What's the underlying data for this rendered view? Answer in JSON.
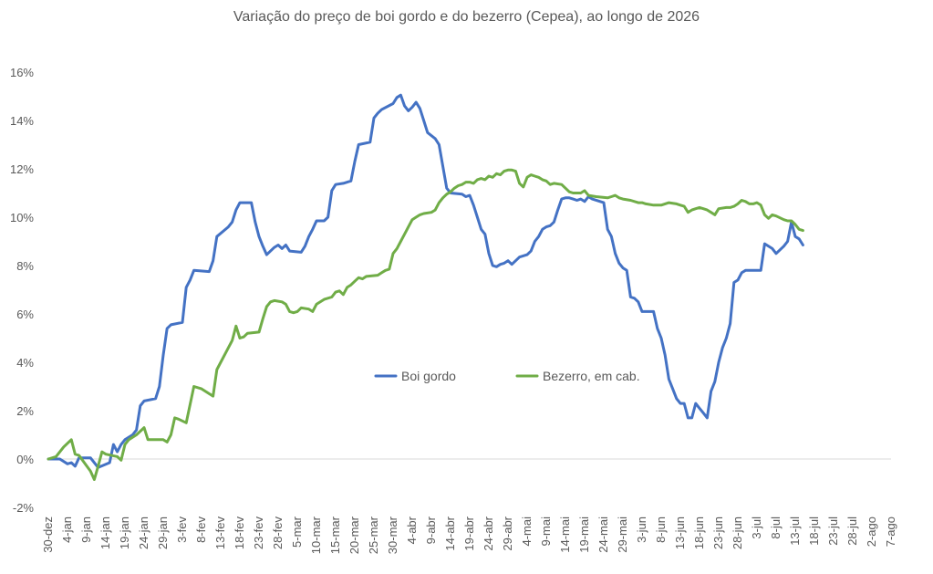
{
  "chart_data": {
    "type": "line",
    "title": "Variação do preço de boi gordo  e do bezerro (Cepea), ao longo de 2026",
    "xlabel": "",
    "ylabel": "",
    "ylim": [
      -2,
      16
    ],
    "yticks": [
      -2,
      0,
      2,
      4,
      6,
      8,
      10,
      12,
      14,
      16
    ],
    "ytick_labels": [
      "-2%",
      "0%",
      "2%",
      "4%",
      "6%",
      "8%",
      "10%",
      "12%",
      "14%",
      "16%"
    ],
    "x_tick_labels": [
      "30-dez",
      "4-jan",
      "9-jan",
      "14-jan",
      "19-jan",
      "24-jan",
      "29-jan",
      "3-fev",
      "8-fev",
      "13-fev",
      "18-fev",
      "23-fev",
      "28-fev",
      "5-mar",
      "10-mar",
      "15-mar",
      "20-mar",
      "25-mar",
      "30-mar",
      "4-abr",
      "9-abr",
      "14-abr",
      "19-abr",
      "24-abr",
      "29-abr",
      "4-mai",
      "9-mai",
      "14-mai",
      "19-mai",
      "24-mai",
      "29-mai",
      "3-jun",
      "8-jun",
      "13-jun",
      "18-jun",
      "23-jun",
      "28-jun",
      "3-jul",
      "8-jul",
      "13-jul",
      "18-jul",
      "23-jul",
      "28-jul",
      "2-ago",
      "7-ago"
    ],
    "x_unit": "dias desde 30-dez",
    "legend_position": "center",
    "grid": false,
    "series": [
      {
        "name": "Boi gordo",
        "color": "#4472C4",
        "points": [
          [
            0,
            0
          ],
          [
            3,
            0
          ],
          [
            5,
            -0.2
          ],
          [
            6,
            -0.15
          ],
          [
            7,
            -0.3
          ],
          [
            8,
            0.05
          ],
          [
            11,
            0.05
          ],
          [
            13,
            -0.35
          ],
          [
            16,
            -0.15
          ],
          [
            17,
            0.6
          ],
          [
            18,
            0.3
          ],
          [
            19,
            0.6
          ],
          [
            20,
            0.8
          ],
          [
            22,
            1.0
          ],
          [
            23,
            1.2
          ],
          [
            24,
            2.2
          ],
          [
            25,
            2.4
          ],
          [
            28,
            2.5
          ],
          [
            29,
            3.0
          ],
          [
            30,
            4.3
          ],
          [
            31,
            5.4
          ],
          [
            32,
            5.55
          ],
          [
            35,
            5.65
          ],
          [
            36,
            7.1
          ],
          [
            37,
            7.4
          ],
          [
            38,
            7.8
          ],
          [
            42,
            7.75
          ],
          [
            43,
            8.2
          ],
          [
            44,
            9.2
          ],
          [
            47,
            9.6
          ],
          [
            48,
            9.8
          ],
          [
            49,
            10.3
          ],
          [
            50,
            10.6
          ],
          [
            53,
            10.6
          ],
          [
            54,
            9.8
          ],
          [
            55,
            9.2
          ],
          [
            56,
            8.8
          ],
          [
            57,
            8.45
          ],
          [
            58,
            8.6
          ],
          [
            59,
            8.75
          ],
          [
            60,
            8.85
          ],
          [
            61,
            8.7
          ],
          [
            62,
            8.85
          ],
          [
            63,
            8.6
          ],
          [
            66,
            8.55
          ],
          [
            67,
            8.8
          ],
          [
            68,
            9.2
          ],
          [
            69,
            9.5
          ],
          [
            70,
            9.85
          ],
          [
            72,
            9.85
          ],
          [
            73,
            10.0
          ],
          [
            74,
            11.1
          ],
          [
            75,
            11.35
          ],
          [
            77,
            11.4
          ],
          [
            79,
            11.5
          ],
          [
            80,
            12.3
          ],
          [
            81,
            13.0
          ],
          [
            84,
            13.1
          ],
          [
            85,
            14.1
          ],
          [
            86,
            14.3
          ],
          [
            87,
            14.45
          ],
          [
            90,
            14.7
          ],
          [
            91,
            14.95
          ],
          [
            92,
            15.05
          ],
          [
            93,
            14.6
          ],
          [
            94,
            14.4
          ],
          [
            95,
            14.55
          ],
          [
            96,
            14.75
          ],
          [
            97,
            14.5
          ],
          [
            98,
            14.0
          ],
          [
            99,
            13.5
          ],
          [
            101,
            13.25
          ],
          [
            102,
            13.0
          ],
          [
            103,
            12.1
          ],
          [
            104,
            11.2
          ],
          [
            105,
            11.0
          ],
          [
            108,
            10.95
          ],
          [
            109,
            10.85
          ],
          [
            110,
            10.9
          ],
          [
            111,
            10.5
          ],
          [
            112,
            10.0
          ],
          [
            113,
            9.5
          ],
          [
            114,
            9.3
          ],
          [
            115,
            8.5
          ],
          [
            116,
            8.0
          ],
          [
            117,
            7.95
          ],
          [
            118,
            8.05
          ],
          [
            119,
            8.1
          ],
          [
            120,
            8.2
          ],
          [
            121,
            8.05
          ],
          [
            122,
            8.2
          ],
          [
            123,
            8.35
          ],
          [
            125,
            8.45
          ],
          [
            126,
            8.6
          ],
          [
            127,
            9.0
          ],
          [
            128,
            9.2
          ],
          [
            129,
            9.5
          ],
          [
            130,
            9.6
          ],
          [
            131,
            9.65
          ],
          [
            132,
            9.8
          ],
          [
            133,
            10.3
          ],
          [
            134,
            10.75
          ],
          [
            135,
            10.8
          ],
          [
            136,
            10.8
          ],
          [
            137,
            10.75
          ],
          [
            138,
            10.7
          ],
          [
            139,
            10.75
          ],
          [
            140,
            10.65
          ],
          [
            141,
            10.85
          ],
          [
            142,
            10.75
          ],
          [
            145,
            10.6
          ],
          [
            146,
            9.5
          ],
          [
            147,
            9.2
          ],
          [
            148,
            8.5
          ],
          [
            149,
            8.1
          ],
          [
            150,
            7.9
          ],
          [
            151,
            7.8
          ],
          [
            152,
            6.7
          ],
          [
            153,
            6.65
          ],
          [
            154,
            6.5
          ],
          [
            155,
            6.1
          ],
          [
            158,
            6.1
          ],
          [
            159,
            5.4
          ],
          [
            160,
            5.0
          ],
          [
            161,
            4.3
          ],
          [
            162,
            3.3
          ],
          [
            163,
            2.9
          ],
          [
            164,
            2.5
          ],
          [
            165,
            2.3
          ],
          [
            166,
            2.3
          ],
          [
            167,
            1.7
          ],
          [
            168,
            1.7
          ],
          [
            169,
            2.3
          ],
          [
            170,
            2.1
          ],
          [
            171,
            1.9
          ],
          [
            172,
            1.7
          ],
          [
            173,
            2.8
          ],
          [
            174,
            3.2
          ],
          [
            175,
            4.0
          ],
          [
            176,
            4.6
          ],
          [
            177,
            5.0
          ],
          [
            178,
            5.6
          ],
          [
            179,
            7.3
          ],
          [
            180,
            7.4
          ],
          [
            181,
            7.7
          ],
          [
            182,
            7.8
          ],
          [
            186,
            7.8
          ],
          [
            187,
            8.9
          ],
          [
            188,
            8.8
          ],
          [
            189,
            8.7
          ],
          [
            190,
            8.5
          ],
          [
            192,
            8.8
          ],
          [
            193,
            9.0
          ],
          [
            194,
            9.8
          ],
          [
            195,
            9.2
          ],
          [
            196,
            9.1
          ],
          [
            197,
            8.85
          ]
        ]
      },
      {
        "name": "Bezerro, em cab.",
        "color": "#70AD47",
        "points": [
          [
            0,
            0
          ],
          [
            2,
            0.1
          ],
          [
            4,
            0.5
          ],
          [
            6,
            0.8
          ],
          [
            7,
            0.2
          ],
          [
            8,
            0.15
          ],
          [
            11,
            -0.5
          ],
          [
            12,
            -0.85
          ],
          [
            13,
            -0.3
          ],
          [
            14,
            0.3
          ],
          [
            15,
            0.2
          ],
          [
            18,
            0.1
          ],
          [
            19,
            -0.05
          ],
          [
            20,
            0.6
          ],
          [
            21,
            0.8
          ],
          [
            23,
            1.0
          ],
          [
            25,
            1.3
          ],
          [
            26,
            0.8
          ],
          [
            30,
            0.8
          ],
          [
            31,
            0.7
          ],
          [
            32,
            1.0
          ],
          [
            33,
            1.7
          ],
          [
            34,
            1.65
          ],
          [
            36,
            1.5
          ],
          [
            38,
            3.0
          ],
          [
            40,
            2.9
          ],
          [
            43,
            2.6
          ],
          [
            44,
            3.7
          ],
          [
            45,
            4.0
          ],
          [
            47,
            4.6
          ],
          [
            48,
            4.9
          ],
          [
            49,
            5.5
          ],
          [
            50,
            5.0
          ],
          [
            51,
            5.05
          ],
          [
            52,
            5.2
          ],
          [
            55,
            5.25
          ],
          [
            56,
            5.8
          ],
          [
            57,
            6.3
          ],
          [
            58,
            6.5
          ],
          [
            59,
            6.55
          ],
          [
            61,
            6.5
          ],
          [
            62,
            6.4
          ],
          [
            63,
            6.1
          ],
          [
            64,
            6.05
          ],
          [
            65,
            6.1
          ],
          [
            66,
            6.25
          ],
          [
            68,
            6.2
          ],
          [
            69,
            6.1
          ],
          [
            70,
            6.4
          ],
          [
            72,
            6.6
          ],
          [
            74,
            6.7
          ],
          [
            75,
            6.9
          ],
          [
            76,
            6.95
          ],
          [
            77,
            6.8
          ],
          [
            78,
            7.1
          ],
          [
            79,
            7.2
          ],
          [
            80,
            7.35
          ],
          [
            81,
            7.5
          ],
          [
            82,
            7.45
          ],
          [
            83,
            7.55
          ],
          [
            86,
            7.6
          ],
          [
            87,
            7.7
          ],
          [
            88,
            7.8
          ],
          [
            89,
            7.85
          ],
          [
            90,
            8.5
          ],
          [
            91,
            8.7
          ],
          [
            92,
            9.0
          ],
          [
            93,
            9.3
          ],
          [
            94,
            9.6
          ],
          [
            95,
            9.9
          ],
          [
            96,
            10.0
          ],
          [
            97,
            10.1
          ],
          [
            98,
            10.15
          ],
          [
            100,
            10.2
          ],
          [
            101,
            10.3
          ],
          [
            102,
            10.6
          ],
          [
            103,
            10.8
          ],
          [
            104,
            10.95
          ],
          [
            105,
            11.05
          ],
          [
            106,
            11.2
          ],
          [
            107,
            11.3
          ],
          [
            108,
            11.35
          ],
          [
            109,
            11.45
          ],
          [
            110,
            11.45
          ],
          [
            111,
            11.4
          ],
          [
            112,
            11.55
          ],
          [
            113,
            11.6
          ],
          [
            114,
            11.55
          ],
          [
            115,
            11.7
          ],
          [
            116,
            11.65
          ],
          [
            117,
            11.8
          ],
          [
            118,
            11.75
          ],
          [
            119,
            11.9
          ],
          [
            120,
            11.95
          ],
          [
            121,
            11.95
          ],
          [
            122,
            11.9
          ],
          [
            123,
            11.4
          ],
          [
            124,
            11.25
          ],
          [
            125,
            11.65
          ],
          [
            126,
            11.75
          ],
          [
            127,
            11.7
          ],
          [
            128,
            11.65
          ],
          [
            129,
            11.55
          ],
          [
            130,
            11.5
          ],
          [
            131,
            11.35
          ],
          [
            132,
            11.4
          ],
          [
            134,
            11.35
          ],
          [
            135,
            11.2
          ],
          [
            136,
            11.05
          ],
          [
            137,
            11.0
          ],
          [
            138,
            11.0
          ],
          [
            139,
            11.0
          ],
          [
            140,
            11.1
          ],
          [
            141,
            10.9
          ],
          [
            143,
            10.85
          ],
          [
            146,
            10.8
          ],
          [
            147,
            10.85
          ],
          [
            148,
            10.9
          ],
          [
            149,
            10.8
          ],
          [
            150,
            10.75
          ],
          [
            152,
            10.7
          ],
          [
            154,
            10.6
          ],
          [
            155,
            10.6
          ],
          [
            156,
            10.55
          ],
          [
            158,
            10.5
          ],
          [
            160,
            10.5
          ],
          [
            161,
            10.55
          ],
          [
            162,
            10.6
          ],
          [
            164,
            10.55
          ],
          [
            165,
            10.5
          ],
          [
            166,
            10.45
          ],
          [
            167,
            10.2
          ],
          [
            168,
            10.3
          ],
          [
            169,
            10.35
          ],
          [
            170,
            10.4
          ],
          [
            171,
            10.35
          ],
          [
            172,
            10.3
          ],
          [
            173,
            10.2
          ],
          [
            174,
            10.1
          ],
          [
            175,
            10.35
          ],
          [
            177,
            10.4
          ],
          [
            178,
            10.4
          ],
          [
            179,
            10.45
          ],
          [
            180,
            10.55
          ],
          [
            181,
            10.7
          ],
          [
            182,
            10.65
          ],
          [
            183,
            10.55
          ],
          [
            184,
            10.55
          ],
          [
            185,
            10.6
          ],
          [
            186,
            10.5
          ],
          [
            187,
            10.1
          ],
          [
            188,
            9.95
          ],
          [
            189,
            10.1
          ],
          [
            190,
            10.05
          ],
          [
            192,
            9.9
          ],
          [
            193,
            9.85
          ],
          [
            194,
            9.85
          ],
          [
            195,
            9.7
          ],
          [
            196,
            9.5
          ],
          [
            197,
            9.45
          ]
        ]
      }
    ]
  }
}
